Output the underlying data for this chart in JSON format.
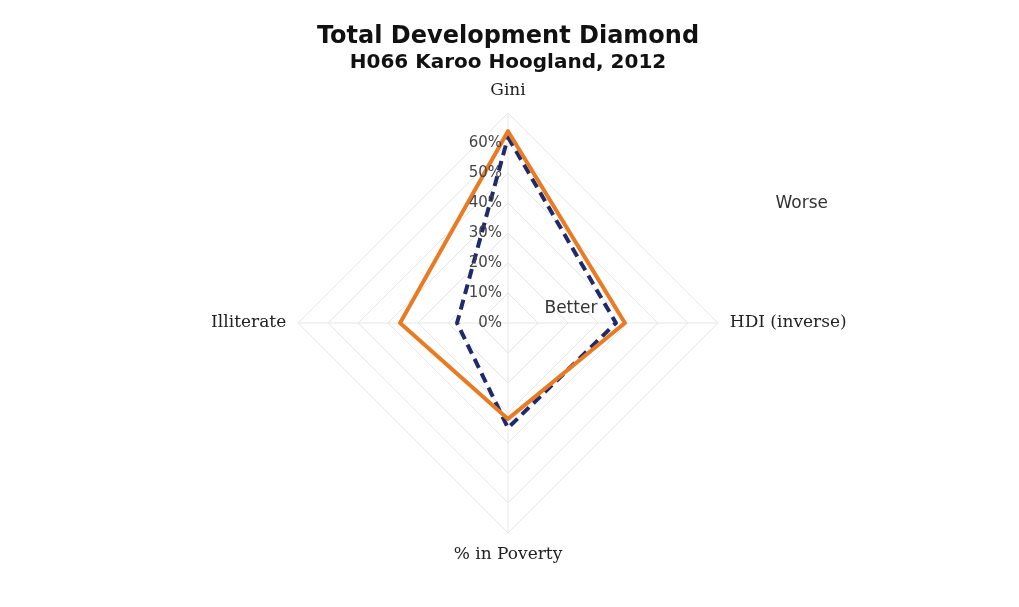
{
  "chart_data": {
    "type": "radar",
    "title": "Total Development Diamond",
    "subtitle": "H066 Karoo Hoogland, 2012",
    "categories": [
      "Gini",
      "HDI (inverse)",
      "% in Poverty",
      "Illiterate"
    ],
    "series": [
      {
        "color": "#e87b24",
        "values": [
          64,
          39,
          32,
          36
        ],
        "line_style": "solid"
      },
      {
        "color": "#1f2a6b",
        "values": [
          62,
          36,
          35,
          17
        ],
        "line_style": "dashed"
      }
    ],
    "ylim": [
      0,
      70
    ],
    "yticks": [
      {
        "value": 0,
        "label": "0%"
      },
      {
        "value": 10,
        "label": "10%"
      },
      {
        "value": 20,
        "label": "20%"
      },
      {
        "value": 30,
        "label": "30%"
      },
      {
        "value": 40,
        "label": "40%"
      },
      {
        "value": 50,
        "label": "50%"
      },
      {
        "value": 60,
        "label": "60%"
      }
    ],
    "grid": true,
    "legend": false,
    "marker": "none",
    "annotations": [
      "Better",
      "Worse"
    ]
  }
}
